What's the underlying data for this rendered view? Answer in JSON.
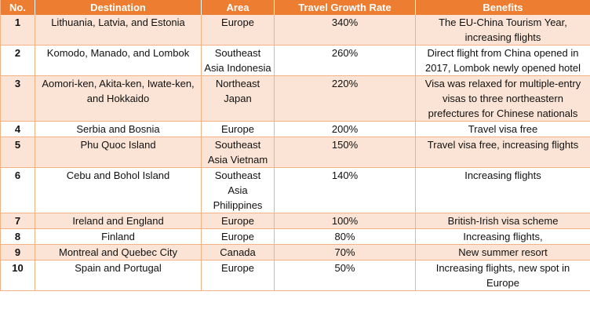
{
  "headers": {
    "no": "No.",
    "destination": "Destination",
    "area": "Area",
    "rate": "Travel Growth Rate",
    "benefits": "Benefits"
  },
  "rows": [
    {
      "no": "1",
      "destination": "Lithuania, Latvia, and Estonia",
      "area": "Europe",
      "rate": "340%",
      "benefits": "The EU-China Tourism Year, increasing flights"
    },
    {
      "no": "2",
      "destination": "Komodo, Manado, and Lombok",
      "area": "Southeast Asia Indonesia",
      "rate": "260%",
      "benefits": "Direct flight from China opened in 2017, Lombok newly opened hotel"
    },
    {
      "no": "3",
      "destination": "Aomori-ken, Akita-ken, Iwate-ken, and Hokkaido",
      "area": "Northeast Japan",
      "rate": "220%",
      "benefits": "Visa was relaxed for multiple-entry visas to three northeastern prefectures for Chinese nationals"
    },
    {
      "no": "4",
      "destination": "Serbia and Bosnia",
      "area": "Europe",
      "rate": "200%",
      "benefits": "Travel visa free"
    },
    {
      "no": "5",
      "destination": "Phu Quoc Island",
      "area": "Southeast Asia Vietnam",
      "rate": "150%",
      "benefits": "Travel visa free, increasing flights"
    },
    {
      "no": "6",
      "destination": "Cebu and Bohol Island",
      "area": "Southeast Asia Philippines",
      "rate": "140%",
      "benefits": "Increasing flights"
    },
    {
      "no": "7",
      "destination": "Ireland and England",
      "area": "Europe",
      "rate": "100%",
      "benefits": "British-Irish visa scheme"
    },
    {
      "no": "8",
      "destination": "Finland",
      "area": "Europe",
      "rate": "80%",
      "benefits": "Increasing flights,"
    },
    {
      "no": "9",
      "destination": "Montreal and Quebec City",
      "area": "Canada",
      "rate": "70%",
      "benefits": "New summer resort"
    },
    {
      "no": "10",
      "destination": "Spain and Portugal",
      "area": "Europe",
      "rate": "50%",
      "benefits": "Increasing flights, new spot in Europe"
    }
  ]
}
